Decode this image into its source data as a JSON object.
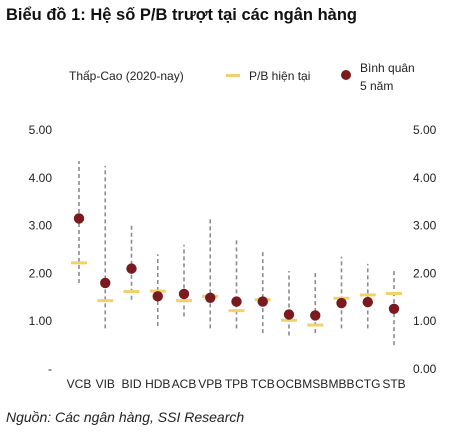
{
  "header": {
    "title": "Biểu đồ 1: Hệ số P/B trượt tại các ngân hàng"
  },
  "footer": {
    "source": "Nguồn: Các ngân hàng, SSI Research"
  },
  "chart_data": {
    "type": "scatter",
    "title": "Biểu đồ 1: Hệ số P/B trượt tại các ngân hàng",
    "categories": [
      "VCB",
      "VIB",
      "BID",
      "HDB",
      "ACB",
      "VPB",
      "TPB",
      "TCB",
      "OCB",
      "MSB",
      "MBB",
      "CTG",
      "STB"
    ],
    "range_label": "Thấp-Cao (2020-nay)",
    "legend": [
      {
        "key": "range",
        "label": "Thấp-Cao (2020-nay)"
      },
      {
        "key": "current",
        "label": "P/B hiện tại",
        "color": "#f2d16b"
      },
      {
        "key": "avg",
        "label_lines": [
          "Bình quân",
          "5 năm"
        ],
        "color": "#7a1a1f"
      }
    ],
    "series": [
      {
        "name": "Thấp-Cao (2020-nay)",
        "low": [
          1.8,
          0.85,
          1.45,
          0.9,
          1.1,
          0.85,
          0.85,
          0.75,
          0.7,
          0.75,
          0.85,
          0.85,
          0.5
        ],
        "high": [
          4.35,
          4.25,
          3.0,
          2.4,
          2.6,
          3.15,
          2.7,
          2.45,
          2.05,
          2.05,
          2.35,
          2.2,
          2.05
        ]
      },
      {
        "name": "P/B hiện tại",
        "values": [
          2.22,
          1.43,
          1.62,
          1.63,
          1.43,
          1.52,
          1.22,
          1.45,
          1.02,
          0.92,
          1.48,
          1.55,
          1.58
        ]
      },
      {
        "name": "Bình quân 5 năm",
        "values": [
          3.15,
          1.8,
          2.1,
          1.52,
          1.57,
          1.49,
          1.41,
          1.41,
          1.14,
          1.12,
          1.38,
          1.4,
          1.26
        ]
      }
    ],
    "y_left_ticks": [
      "-",
      "1.00",
      "2.00",
      "3.00",
      "4.00",
      "5.00"
    ],
    "y_right_ticks": [
      "0.00",
      "1.00",
      "2.00",
      "3.00",
      "4.00",
      "5.00"
    ],
    "ylim": [
      0,
      5
    ],
    "grid": false,
    "legend_position": "top"
  }
}
